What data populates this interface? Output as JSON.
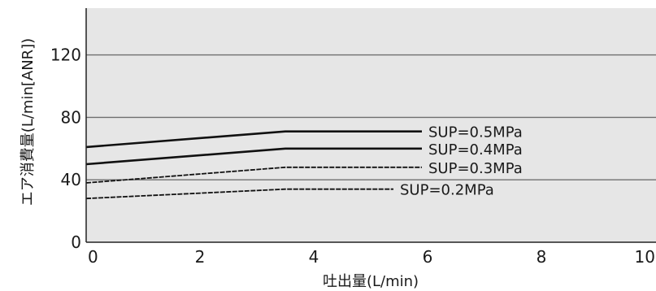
{
  "chart_data": {
    "type": "line",
    "xlabel": "吐出量(L/min)",
    "ylabel": "エア消費量(L/min[ANR])",
    "xlim": [
      0,
      10
    ],
    "ylim": [
      0,
      150
    ],
    "x_ticks": [
      "0",
      "2",
      "4",
      "6",
      "8",
      "10"
    ],
    "y_ticks": [
      "0",
      "40",
      "80",
      "120"
    ],
    "y_tick_values": [
      0,
      40,
      80,
      120
    ],
    "grid": "horizontal",
    "background_color": "#e6e6e6",
    "series": [
      {
        "name": "SUP=0.5MPa",
        "x": [
          0,
          3.5,
          5.9
        ],
        "y": [
          61,
          71,
          71
        ],
        "style": "solid"
      },
      {
        "name": "SUP=0.4MPa",
        "x": [
          0,
          3.5,
          5.9
        ],
        "y": [
          50,
          60,
          60
        ],
        "style": "solid"
      },
      {
        "name": "SUP=0.3MPa",
        "x": [
          0,
          3.5,
          5.9
        ],
        "y": [
          38,
          48,
          48
        ],
        "style": "dashed"
      },
      {
        "name": "SUP=0.2MPa",
        "x": [
          0,
          3.5,
          5.4
        ],
        "y": [
          28,
          34,
          34
        ],
        "style": "dashed"
      }
    ]
  }
}
